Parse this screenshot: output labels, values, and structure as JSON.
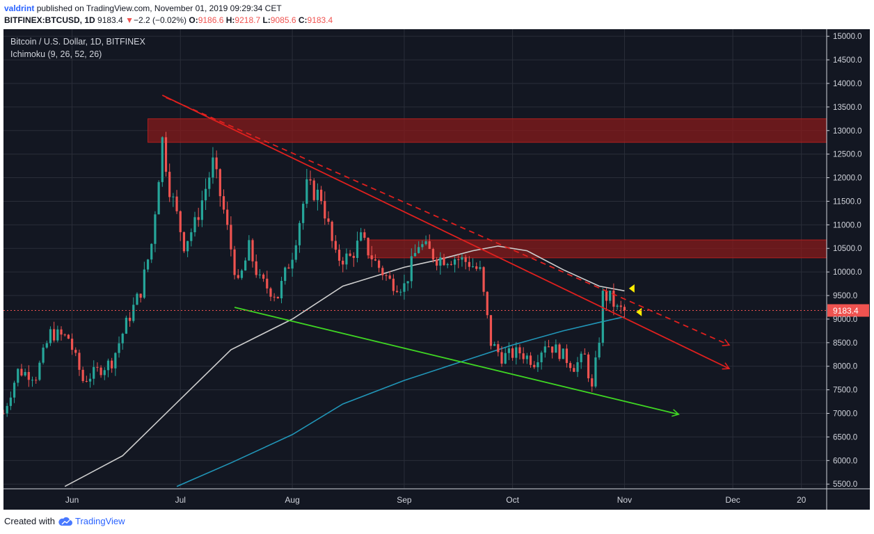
{
  "header": {
    "user": "valdrint",
    "published_text": "published on TradingView.com, November 01, 2019 09:29:34 CET",
    "symbol": "BITFINEX:BTCUSD, 1D",
    "last": "9183.4",
    "change_arrow": "▼",
    "change": "−2.2 (−0.02%)",
    "o_label": "O:",
    "o_value": "9186.6",
    "h_label": "H:",
    "h_value": "9218.7",
    "l_label": "L:",
    "l_value": "9085.6",
    "c_label": "C:",
    "c_value": "9183.4"
  },
  "legend": {
    "title": "Bitcoin / U.S. Dollar, 1D, BITFINEX",
    "indicator": "Ichimoku (9, 26, 52, 26)"
  },
  "footer": {
    "created_with": "Created with",
    "brand": "TradingView",
    "logo_icon": "tradingview-cloud-icon"
  },
  "colors": {
    "background": "#131722",
    "grid": "#2a2e39",
    "up": "#26a69a",
    "down": "#ef5350",
    "zone": "#8b1a1a",
    "trend_red": "#e0201e",
    "trend_green": "#3fd623",
    "ma_white": "#cfcfcf",
    "ma_blue": "#2196b8",
    "marker": "#ffee00",
    "axis_text": "#d1d4dc"
  },
  "chart_data": {
    "type": "candlestick",
    "x_range": [
      "2019-05-13",
      "2019-12-27"
    ],
    "ylim": [
      5400,
      15150
    ],
    "y_ticks": [
      5500,
      6000,
      6500,
      7000,
      7500,
      8000,
      8500,
      9000,
      9500,
      10000,
      10500,
      11000,
      11500,
      12000,
      12500,
      13000,
      13500,
      14000,
      14500,
      15000
    ],
    "y_tick_labels": [
      "5500.0",
      "6000.0",
      "6500.0",
      "7000.0",
      "7500.0",
      "8000.0",
      "8500.0",
      "9000.0",
      "9500.0",
      "10000.0",
      "10500.0",
      "11000.0",
      "11500.0",
      "12000.0",
      "12500.0",
      "13000.0",
      "13500.0",
      "14000.0",
      "14500.0",
      "15000.0"
    ],
    "x_ticks": [
      {
        "date": "2019-06-01",
        "label": "Jun"
      },
      {
        "date": "2019-07-01",
        "label": "Jul"
      },
      {
        "date": "2019-08-01",
        "label": "Aug"
      },
      {
        "date": "2019-09-01",
        "label": "Sep"
      },
      {
        "date": "2019-10-01",
        "label": "Oct"
      },
      {
        "date": "2019-11-01",
        "label": "Nov"
      },
      {
        "date": "2019-12-01",
        "label": "Dec"
      },
      {
        "date": "2019-12-20",
        "label": "20"
      }
    ],
    "grid": true,
    "current_price": 9183.4,
    "current_price_label": "9183.4",
    "anchors": [
      {
        "date": "2019-05-13",
        "price": 7000
      },
      {
        "date": "2019-05-17",
        "price": 7900
      },
      {
        "date": "2019-05-22",
        "price": 7800
      },
      {
        "date": "2019-05-26",
        "price": 8700
      },
      {
        "date": "2019-05-31",
        "price": 8600
      },
      {
        "date": "2019-06-04",
        "price": 7700
      },
      {
        "date": "2019-06-08",
        "price": 7900
      },
      {
        "date": "2019-06-12",
        "price": 8100
      },
      {
        "date": "2019-06-16",
        "price": 8900
      },
      {
        "date": "2019-06-20",
        "price": 9600
      },
      {
        "date": "2019-06-23",
        "price": 10600
      },
      {
        "date": "2019-06-26",
        "price": 12800
      },
      {
        "date": "2019-06-28",
        "price": 11800
      },
      {
        "date": "2019-07-02",
        "price": 10600
      },
      {
        "date": "2019-07-05",
        "price": 11000
      },
      {
        "date": "2019-07-10",
        "price": 12300
      },
      {
        "date": "2019-07-13",
        "price": 11300
      },
      {
        "date": "2019-07-17",
        "price": 9700
      },
      {
        "date": "2019-07-20",
        "price": 10500
      },
      {
        "date": "2019-07-23",
        "price": 9800
      },
      {
        "date": "2019-07-28",
        "price": 9500
      },
      {
        "date": "2019-08-01",
        "price": 10400
      },
      {
        "date": "2019-08-05",
        "price": 11800
      },
      {
        "date": "2019-08-09",
        "price": 11600
      },
      {
        "date": "2019-08-13",
        "price": 10300
      },
      {
        "date": "2019-08-17",
        "price": 10300
      },
      {
        "date": "2019-08-20",
        "price": 10700
      },
      {
        "date": "2019-08-24",
        "price": 10200
      },
      {
        "date": "2019-08-28",
        "price": 9800
      },
      {
        "date": "2019-09-01",
        "price": 9700
      },
      {
        "date": "2019-09-05",
        "price": 10600
      },
      {
        "date": "2019-09-10",
        "price": 10300
      },
      {
        "date": "2019-09-15",
        "price": 10300
      },
      {
        "date": "2019-09-19",
        "price": 10200
      },
      {
        "date": "2019-09-22",
        "price": 10000
      },
      {
        "date": "2019-09-25",
        "price": 8500
      },
      {
        "date": "2019-09-28",
        "price": 8200
      },
      {
        "date": "2019-10-03",
        "price": 8300
      },
      {
        "date": "2019-10-07",
        "price": 8100
      },
      {
        "date": "2019-10-10",
        "price": 8500
      },
      {
        "date": "2019-10-14",
        "price": 8300
      },
      {
        "date": "2019-10-18",
        "price": 8000
      },
      {
        "date": "2019-10-21",
        "price": 8200
      },
      {
        "date": "2019-10-23",
        "price": 7500
      },
      {
        "date": "2019-10-25",
        "price": 8600
      },
      {
        "date": "2019-10-26",
        "price": 9500
      },
      {
        "date": "2019-10-28",
        "price": 9450
      },
      {
        "date": "2019-10-30",
        "price": 9200
      },
      {
        "date": "2019-11-01",
        "price": 9183
      }
    ],
    "zones": [
      {
        "name": "resistance-upper",
        "from": "2019-06-22",
        "to": "2019-12-27",
        "low": 12750,
        "high": 13250
      },
      {
        "name": "resistance-lower",
        "from": "2019-08-22",
        "to": "2019-12-27",
        "low": 10300,
        "high": 10680
      }
    ],
    "trendlines": [
      {
        "name": "descending-resistance",
        "style": "solid",
        "color": "#e0201e",
        "from": {
          "date": "2019-06-26",
          "price": 13750
        },
        "to": {
          "date": "2019-11-30",
          "price": 7950
        }
      },
      {
        "name": "descending-resistance-wick",
        "style": "dashed",
        "color": "#e0201e",
        "from": {
          "date": "2019-06-27",
          "price": 13700
        },
        "to": {
          "date": "2019-11-30",
          "price": 8450
        }
      },
      {
        "name": "descending-support",
        "style": "solid",
        "color": "#3fd623",
        "from": {
          "date": "2019-07-16",
          "price": 9250
        },
        "to": {
          "date": "2019-11-16",
          "price": 6980
        }
      }
    ],
    "ma_white": [
      {
        "date": "2019-05-30",
        "price": 5450
      },
      {
        "date": "2019-06-15",
        "price": 6100
      },
      {
        "date": "2019-07-01",
        "price": 7300
      },
      {
        "date": "2019-07-15",
        "price": 8350
      },
      {
        "date": "2019-08-01",
        "price": 9000
      },
      {
        "date": "2019-08-15",
        "price": 9700
      },
      {
        "date": "2019-09-01",
        "price": 10100
      },
      {
        "date": "2019-09-10",
        "price": 10250
      },
      {
        "date": "2019-09-20",
        "price": 10450
      },
      {
        "date": "2019-09-27",
        "price": 10550
      },
      {
        "date": "2019-10-05",
        "price": 10450
      },
      {
        "date": "2019-10-15",
        "price": 10050
      },
      {
        "date": "2019-10-25",
        "price": 9700
      },
      {
        "date": "2019-11-01",
        "price": 9600
      }
    ],
    "ma_blue": [
      {
        "date": "2019-06-30",
        "price": 5450
      },
      {
        "date": "2019-07-15",
        "price": 5950
      },
      {
        "date": "2019-08-01",
        "price": 6550
      },
      {
        "date": "2019-08-15",
        "price": 7200
      },
      {
        "date": "2019-09-01",
        "price": 7700
      },
      {
        "date": "2019-09-15",
        "price": 8050
      },
      {
        "date": "2019-10-01",
        "price": 8450
      },
      {
        "date": "2019-10-15",
        "price": 8750
      },
      {
        "date": "2019-10-25",
        "price": 8930
      },
      {
        "date": "2019-11-01",
        "price": 9050
      }
    ],
    "markers": [
      {
        "date": "2019-11-03",
        "price": 9650
      },
      {
        "date": "2019-11-05",
        "price": 9150
      }
    ],
    "arrow_targets": [
      {
        "date": "2019-11-30",
        "price": 7950,
        "color": "#e0201e"
      },
      {
        "date": "2019-11-30",
        "price": 8450,
        "color": "#e0201e"
      },
      {
        "date": "2019-11-16",
        "price": 6980,
        "color": "#3fd623"
      }
    ]
  }
}
